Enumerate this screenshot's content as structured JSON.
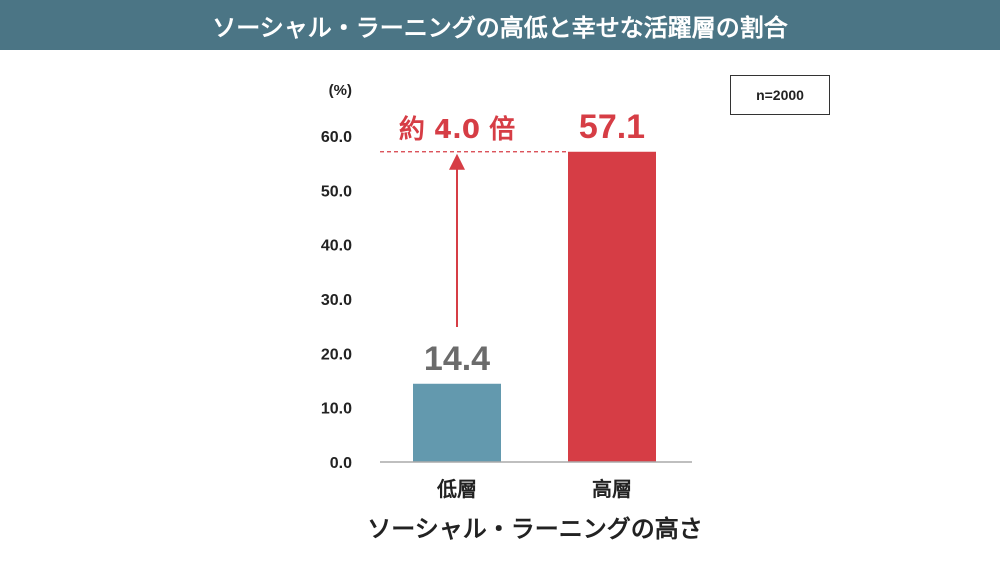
{
  "header": {
    "title": "ソーシャル・ラーニングの高低と幸せな活躍層の割合"
  },
  "sample_note": "n=2000",
  "annotation": {
    "text": "約 4.0 倍"
  },
  "chart_data": {
    "type": "bar",
    "title": "ソーシャル・ラーニングの高低と幸せな活躍層の割合",
    "xlabel": "ソーシャル・ラーニングの高さ",
    "ylabel": "(%)",
    "categories": [
      "低層",
      "高層"
    ],
    "values": [
      14.4,
      57.1
    ],
    "value_labels": [
      "14.4",
      "57.1"
    ],
    "ylim": [
      0,
      60
    ],
    "yticks": [
      "0.0",
      "10.0",
      "20.0",
      "30.0",
      "40.0",
      "50.0",
      "60.0"
    ],
    "grid": false,
    "colors": {
      "low": "#6399ae",
      "high": "#d63d45",
      "low_label": "#6b6b6b",
      "high_label": "#d63d45",
      "accent": "#d63d45"
    }
  }
}
